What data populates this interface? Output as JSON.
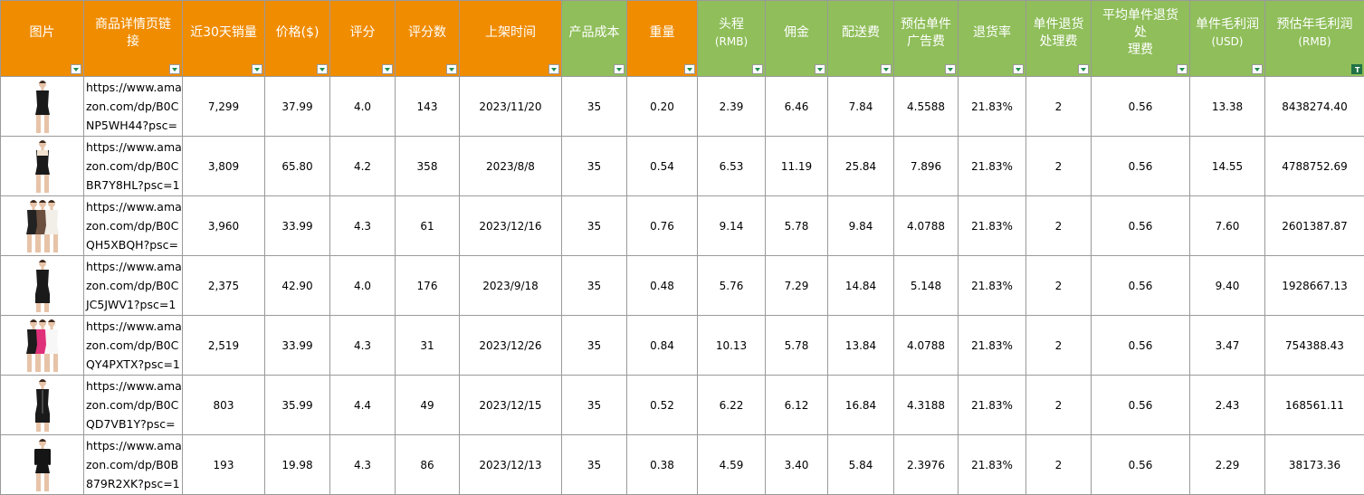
{
  "headers": [
    {
      "label": "图片",
      "sub": "",
      "color": "orange"
    },
    {
      "label": "商品详情页链\n接",
      "sub": "",
      "color": "orange"
    },
    {
      "label": "近30天销量",
      "sub": "",
      "color": "orange"
    },
    {
      "label": "价格($)",
      "sub": "",
      "color": "orange"
    },
    {
      "label": "评分",
      "sub": "",
      "color": "orange"
    },
    {
      "label": "评分数",
      "sub": "",
      "color": "orange"
    },
    {
      "label": "上架时间",
      "sub": "",
      "color": "orange"
    },
    {
      "label": "产品成本",
      "sub": "",
      "color": "green"
    },
    {
      "label": "重量",
      "sub": "",
      "color": "orange"
    },
    {
      "label": "头程",
      "sub": "(RMB)",
      "color": "green"
    },
    {
      "label": "佣金",
      "sub": "",
      "color": "green"
    },
    {
      "label": "配送费",
      "sub": "",
      "color": "green"
    },
    {
      "label": "预估单件\n广告费",
      "sub": "",
      "color": "green"
    },
    {
      "label": "退货率",
      "sub": "",
      "color": "green"
    },
    {
      "label": "单件退货\n处理费",
      "sub": "",
      "color": "green"
    },
    {
      "label": "平均单件退货处\n理费",
      "sub": "",
      "color": "green"
    },
    {
      "label": "单件毛利润",
      "sub": "(USD)",
      "color": "green"
    },
    {
      "label": "预估年毛利润",
      "sub": "(RMB)",
      "color": "green"
    }
  ],
  "rows": [
    {
      "image": "strapless-black-bodysuit",
      "url": "https://www.amazon.com/dp/B0CNP5WH44?psc=",
      "sales": "7,299",
      "price": "37.99",
      "rating": "4.0",
      "reviews": "143",
      "date": "2023/11/20",
      "cost": "35",
      "weight": "0.20",
      "freight": "2.39",
      "commission": "6.46",
      "delivery": "7.84",
      "ad": "4.5588",
      "return_rate": "21.83%",
      "return_fee": "2",
      "avg_return_fee": "0.56",
      "profit": "13.38",
      "annual_profit": "8438274.40"
    },
    {
      "image": "vest-shaper-bodysuit",
      "url": "https://www.amazon.com/dp/B0CBR7Y8HL?psc=1",
      "sales": "3,809",
      "price": "65.80",
      "rating": "4.2",
      "reviews": "358",
      "date": "2023/8/8",
      "cost": "35",
      "weight": "0.54",
      "freight": "6.53",
      "commission": "11.19",
      "delivery": "25.84",
      "ad": "7.896",
      "return_rate": "21.83%",
      "return_fee": "2",
      "avg_return_fee": "0.56",
      "profit": "14.55",
      "annual_profit": "4788752.69"
    },
    {
      "image": "three-color-bodysuit-set",
      "url": "https://www.amazon.com/dp/B0CQH5XBQH?psc=",
      "sales": "3,960",
      "price": "33.99",
      "rating": "4.3",
      "reviews": "61",
      "date": "2023/12/16",
      "cost": "35",
      "weight": "0.76",
      "freight": "9.14",
      "commission": "5.78",
      "delivery": "9.84",
      "ad": "4.0788",
      "return_rate": "21.83%",
      "return_fee": "2",
      "avg_return_fee": "0.56",
      "profit": "7.60",
      "annual_profit": "2601387.87"
    },
    {
      "image": "open-bust-shaper-shorts",
      "url": "https://www.amazon.com/dp/B0CJC5JWV1?psc=1",
      "sales": "2,375",
      "price": "42.90",
      "rating": "4.0",
      "reviews": "176",
      "date": "2023/9/18",
      "cost": "35",
      "weight": "0.48",
      "freight": "5.76",
      "commission": "7.29",
      "delivery": "14.84",
      "ad": "5.148",
      "return_rate": "21.83%",
      "return_fee": "2",
      "avg_return_fee": "0.56",
      "profit": "9.40",
      "annual_profit": "1928667.13"
    },
    {
      "image": "pink-black-white-bodysuit-set",
      "url": "https://www.amazon.com/dp/B0CQY4PXTX?psc=1",
      "sales": "2,519",
      "price": "33.99",
      "rating": "4.3",
      "reviews": "31",
      "date": "2023/12/26",
      "cost": "35",
      "weight": "0.84",
      "freight": "10.13",
      "commission": "5.78",
      "delivery": "13.84",
      "ad": "4.0788",
      "return_rate": "21.83%",
      "return_fee": "2",
      "avg_return_fee": "0.56",
      "profit": "3.47",
      "annual_profit": "754388.43"
    },
    {
      "image": "zip-front-shaper-shorts",
      "url": "https://www.amazon.com/dp/B0CQD7VB1Y?psc=",
      "sales": "803",
      "price": "35.99",
      "rating": "4.4",
      "reviews": "49",
      "date": "2023/12/15",
      "cost": "35",
      "weight": "0.52",
      "freight": "6.22",
      "commission": "6.12",
      "delivery": "16.84",
      "ad": "4.3188",
      "return_rate": "21.83%",
      "return_fee": "2",
      "avg_return_fee": "0.56",
      "profit": "2.43",
      "annual_profit": "168561.11"
    },
    {
      "image": "long-sleeve-black-bodysuit",
      "url": "https://www.amazon.com/dp/B0B879R2XK?psc=1",
      "sales": "193",
      "price": "19.98",
      "rating": "4.3",
      "reviews": "86",
      "date": "2023/12/13",
      "cost": "35",
      "weight": "0.38",
      "freight": "4.59",
      "commission": "3.40",
      "delivery": "5.84",
      "ad": "2.3976",
      "return_rate": "21.83%",
      "return_fee": "2",
      "avg_return_fee": "0.56",
      "profit": "2.29",
      "annual_profit": "38173.36"
    }
  ],
  "colors": {
    "orange": "#f08c00",
    "green": "#8fbe5a",
    "filter": "#1e8e4e"
  }
}
